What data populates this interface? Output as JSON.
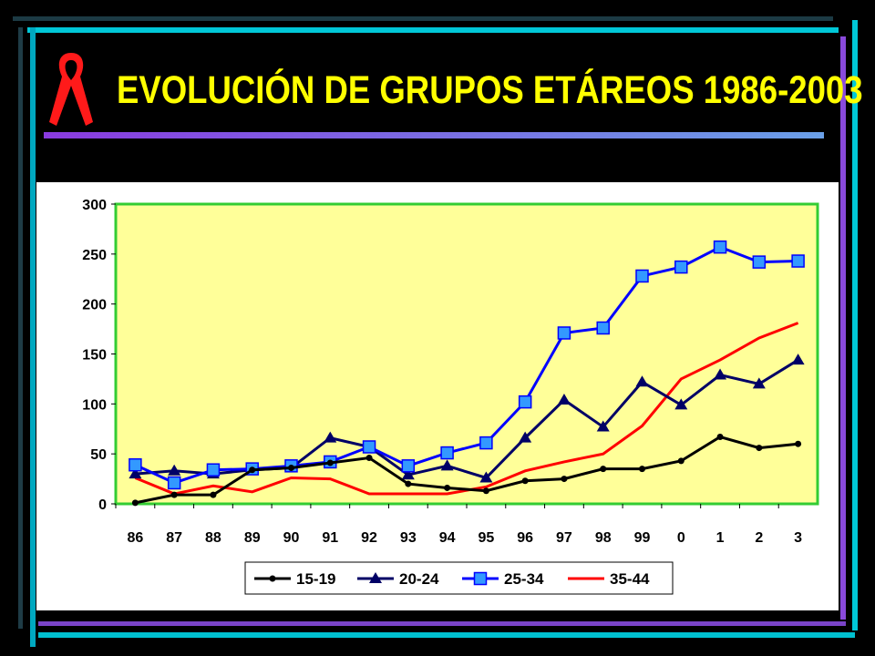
{
  "title": "EVOLUCIÓN DE GRUPOS ETÁREOS 1986-2003",
  "colors": {
    "background": "#000000",
    "title": "#ffff00",
    "plot_bg": "#ffff99",
    "plot_border": "#33cc33",
    "ribbon": "#ff0000"
  },
  "icons": {
    "ribbon": "aids-ribbon-icon"
  },
  "chart_data": {
    "type": "line",
    "categories": [
      "86",
      "87",
      "88",
      "89",
      "90",
      "91",
      "92",
      "93",
      "94",
      "95",
      "96",
      "97",
      "98",
      "99",
      "0",
      "1",
      "2",
      "3"
    ],
    "ylim": [
      0,
      300
    ],
    "yticks": [
      "0",
      "50",
      "100",
      "150",
      "200",
      "250",
      "300"
    ],
    "xlabel": "",
    "ylabel": "",
    "grid": false,
    "legend_position": "bottom",
    "series": [
      {
        "name": "15-19",
        "color": "#000000",
        "marker": "circle",
        "values": [
          1,
          9,
          9,
          34,
          36,
          41,
          46,
          20,
          16,
          13,
          23,
          25,
          35,
          35,
          43,
          67,
          56,
          60
        ]
      },
      {
        "name": "20-24",
        "color": "#000066",
        "marker": "triangle",
        "values": [
          30,
          33,
          30,
          34,
          36,
          66,
          57,
          29,
          38,
          26,
          66,
          104,
          77,
          122,
          99,
          129,
          120,
          144
        ]
      },
      {
        "name": "25-34",
        "color": "#0000ff",
        "marker": "square",
        "values": [
          39,
          21,
          34,
          35,
          38,
          42,
          57,
          38,
          51,
          61,
          102,
          171,
          176,
          228,
          237,
          257,
          242,
          243
        ]
      },
      {
        "name": "35-44",
        "color": "#ff0000",
        "marker": "none",
        "values": [
          26,
          10,
          18,
          12,
          26,
          25,
          10,
          10,
          10,
          17,
          33,
          42,
          50,
          78,
          125,
          144,
          166,
          181
        ]
      }
    ]
  }
}
